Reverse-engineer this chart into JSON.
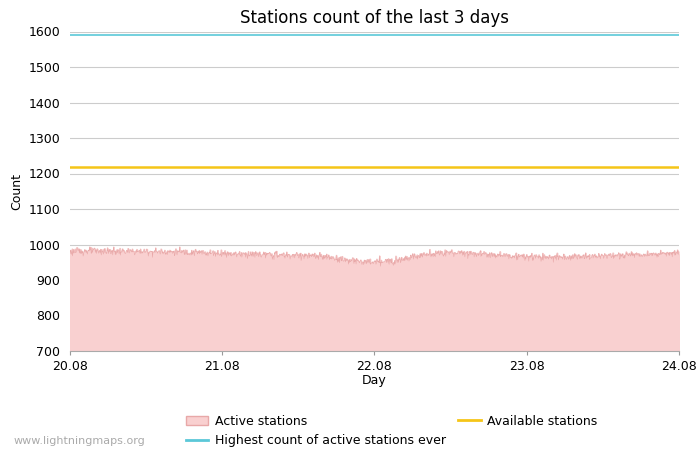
{
  "title": "Stations count of the last 3 days",
  "xlabel": "Day",
  "ylabel": "Count",
  "ylim": [
    700,
    1600
  ],
  "yticks": [
    700,
    800,
    900,
    1000,
    1100,
    1200,
    1300,
    1400,
    1500,
    1600
  ],
  "xlim_start": 0,
  "xlim_end": 288,
  "xtick_positions": [
    0,
    72,
    144,
    216,
    288
  ],
  "xtick_labels": [
    "20.08",
    "21.08",
    "22.08",
    "23.08",
    "24.08"
  ],
  "highest_count_ever": 1590,
  "available_stations": 1218,
  "active_stations_mean": 975,
  "active_stations_noise": 5,
  "active_color_fill": "#f9d0d0",
  "active_color_line": "#e8a8a8",
  "highest_color": "#5bc8d8",
  "available_color": "#f5c518",
  "background_color": "#ffffff",
  "grid_color": "#cccccc",
  "watermark": "www.lightningmaps.org",
  "title_fontsize": 12,
  "axis_label_fontsize": 9,
  "tick_fontsize": 9,
  "watermark_fontsize": 8,
  "legend_fontsize": 9
}
